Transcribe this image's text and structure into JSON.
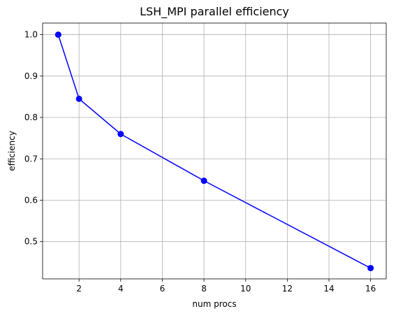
{
  "chart_data": {
    "type": "line",
    "title": "LSH_MPI parallel efficiency",
    "xlabel": "num procs",
    "ylabel": "efficiency",
    "x": [
      1,
      2,
      4,
      8,
      16
    ],
    "series": [
      {
        "values": [
          1.0,
          0.845,
          0.76,
          0.647,
          0.436
        ],
        "color": "#0000ff",
        "marker": "circle"
      }
    ],
    "xlim": [
      0.25,
      16.75
    ],
    "ylim": [
      0.41,
      1.028
    ],
    "xticks": [
      2,
      4,
      6,
      8,
      10,
      12,
      14,
      16
    ],
    "yticks": [
      0.5,
      0.6,
      0.7,
      0.8,
      0.9,
      1.0
    ],
    "ytick_labels": [
      "0.5",
      "0.6",
      "0.7",
      "0.8",
      "0.9",
      "1.0"
    ],
    "grid": true
  }
}
